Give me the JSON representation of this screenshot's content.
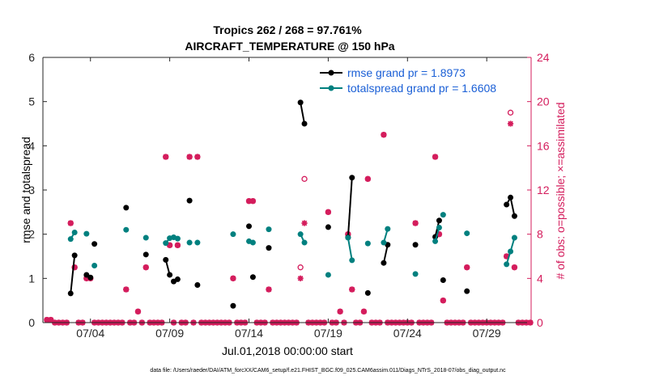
{
  "chart_data": {
    "type": "line",
    "title": "Tropics 262 / 268 = 97.761%",
    "subtitle": "AIRCRAFT_TEMPERATURE @ 150 hPa",
    "xlabel": "Jul.01,2018 00:00:00 start",
    "ylabel": "rmse and totalspread",
    "ylabel_right": "# of obs: o=possible; ×=assimilated",
    "footer": "data file: /Users/raeder/DAI/ATM_forcXX/CAM6_setup/f.e21.FHIST_BGC.f09_025.CAM6assim.011/Diags_NTrS_2018-07/obs_diag_output.nc",
    "xlim": [
      0.5,
      31.3
    ],
    "ylim": [
      0,
      6
    ],
    "ylim_right": [
      0,
      24
    ],
    "x_ticks": [
      3.5,
      8.5,
      13.5,
      18.5,
      23.5,
      28.5
    ],
    "x_tick_labels": [
      "07/04",
      "07/09",
      "07/14",
      "07/19",
      "07/24",
      "07/29"
    ],
    "y_ticks": [
      0,
      1,
      2,
      3,
      4,
      5,
      6
    ],
    "y_ticks_right": [
      0,
      4,
      8,
      12,
      16,
      20,
      24
    ],
    "legend_position": "top-right",
    "colors": {
      "rmse": "#000000",
      "spread": "#00807f",
      "obs": "#d41c5c"
    },
    "series": [
      {
        "name": "rmse grand pr = 1.8973",
        "key": "rmse",
        "segments": [
          [
            [
              2.25,
              0.66
            ],
            [
              2.5,
              1.52
            ]
          ],
          [
            [
              3.25,
              1.08
            ],
            [
              3.5,
              1.02
            ]
          ],
          [
            [
              3.75,
              1.78
            ]
          ],
          [
            [
              5.75,
              2.6
            ]
          ],
          [
            [
              7.0,
              1.54
            ]
          ],
          [
            [
              8.25,
              1.42
            ],
            [
              8.5,
              1.08
            ]
          ],
          [
            [
              8.75,
              0.93
            ],
            [
              9.0,
              0.98
            ]
          ],
          [
            [
              9.75,
              2.76
            ]
          ],
          [
            [
              10.25,
              0.85
            ]
          ],
          [
            [
              12.5,
              0.38
            ]
          ],
          [
            [
              13.5,
              2.18
            ]
          ],
          [
            [
              13.75,
              1.03
            ]
          ],
          [
            [
              14.75,
              1.69
            ]
          ],
          [
            [
              16.75,
              4.98
            ],
            [
              17.0,
              4.5
            ]
          ],
          [
            [
              18.5,
              2.16
            ]
          ],
          [
            [
              19.75,
              1.93
            ],
            [
              20.0,
              3.28
            ]
          ],
          [
            [
              21.0,
              0.67
            ]
          ],
          [
            [
              22.0,
              1.35
            ],
            [
              22.25,
              1.76
            ]
          ],
          [
            [
              24.0,
              1.76
            ]
          ],
          [
            [
              25.25,
              1.94
            ],
            [
              25.5,
              2.31
            ]
          ],
          [
            [
              25.75,
              0.96
            ]
          ],
          [
            [
              27.25,
              0.71
            ]
          ],
          [
            [
              29.75,
              2.67
            ],
            [
              30.0,
              2.83
            ],
            [
              30.25,
              2.41
            ]
          ]
        ]
      },
      {
        "name": "totalspread grand pr = 1.6608",
        "key": "spread",
        "segments": [
          [
            [
              2.25,
              1.89
            ],
            [
              2.5,
              2.04
            ]
          ],
          [
            [
              3.25,
              2.01
            ]
          ],
          [
            [
              3.75,
              1.29
            ]
          ],
          [
            [
              5.75,
              2.1
            ]
          ],
          [
            [
              7.0,
              1.92
            ]
          ],
          [
            [
              8.25,
              1.8
            ],
            [
              8.5,
              1.91
            ]
          ],
          [
            [
              8.75,
              1.93
            ],
            [
              9.0,
              1.9
            ]
          ],
          [
            [
              9.75,
              1.81
            ]
          ],
          [
            [
              10.25,
              1.81
            ]
          ],
          [
            [
              12.5,
              2.0
            ]
          ],
          [
            [
              13.5,
              1.84
            ]
          ],
          [
            [
              13.75,
              1.81
            ]
          ],
          [
            [
              14.75,
              2.11
            ]
          ],
          [
            [
              16.75,
              2.0
            ],
            [
              17.0,
              1.81
            ]
          ],
          [
            [
              18.5,
              1.08
            ]
          ],
          [
            [
              19.75,
              1.92
            ],
            [
              20.0,
              1.41
            ]
          ],
          [
            [
              21.0,
              1.79
            ]
          ],
          [
            [
              22.0,
              1.81
            ],
            [
              22.25,
              2.12
            ]
          ],
          [
            [
              24.0,
              1.1
            ]
          ],
          [
            [
              25.25,
              1.84
            ],
            [
              25.5,
              2.15
            ]
          ],
          [
            [
              25.75,
              2.44
            ]
          ],
          [
            [
              27.25,
              2.02
            ]
          ],
          [
            [
              29.75,
              1.32
            ],
            [
              30.0,
              1.61
            ],
            [
              30.25,
              1.92
            ]
          ]
        ]
      }
    ],
    "obs_possible": [
      [
        0.75,
        0.25
      ],
      [
        1.0,
        0.25
      ],
      [
        1.25,
        0
      ],
      [
        1.5,
        0
      ],
      [
        1.75,
        0
      ],
      [
        2.0,
        0
      ],
      [
        2.25,
        9
      ],
      [
        2.5,
        5
      ],
      [
        2.75,
        0
      ],
      [
        3.0,
        0
      ],
      [
        3.25,
        4
      ],
      [
        3.5,
        4
      ],
      [
        3.75,
        0
      ],
      [
        4.0,
        0
      ],
      [
        4.25,
        0
      ],
      [
        4.5,
        0
      ],
      [
        4.75,
        0
      ],
      [
        5.0,
        0
      ],
      [
        5.25,
        0
      ],
      [
        5.5,
        0
      ],
      [
        5.75,
        3
      ],
      [
        6.0,
        0
      ],
      [
        6.25,
        0
      ],
      [
        6.5,
        1
      ],
      [
        6.75,
        0
      ],
      [
        7.0,
        5
      ],
      [
        7.25,
        0
      ],
      [
        7.5,
        0
      ],
      [
        7.75,
        0
      ],
      [
        8.0,
        0
      ],
      [
        8.25,
        15
      ],
      [
        8.5,
        7
      ],
      [
        8.75,
        0
      ],
      [
        9.0,
        7
      ],
      [
        9.25,
        0
      ],
      [
        9.5,
        0
      ],
      [
        9.75,
        15
      ],
      [
        10.0,
        0
      ],
      [
        10.25,
        15
      ],
      [
        10.5,
        0
      ],
      [
        10.75,
        0
      ],
      [
        11.0,
        0
      ],
      [
        11.25,
        0
      ],
      [
        11.5,
        0
      ],
      [
        11.75,
        0
      ],
      [
        12.0,
        0
      ],
      [
        12.25,
        0
      ],
      [
        12.5,
        4
      ],
      [
        12.75,
        0
      ],
      [
        13.0,
        0
      ],
      [
        13.25,
        0
      ],
      [
        13.5,
        11
      ],
      [
        13.75,
        11
      ],
      [
        14.0,
        0
      ],
      [
        14.25,
        0
      ],
      [
        14.5,
        0
      ],
      [
        14.75,
        3
      ],
      [
        15.0,
        0
      ],
      [
        15.25,
        0
      ],
      [
        15.5,
        0
      ],
      [
        15.75,
        0
      ],
      [
        16.0,
        0
      ],
      [
        16.25,
        0
      ],
      [
        16.5,
        0
      ],
      [
        16.75,
        5
      ],
      [
        17.0,
        13
      ],
      [
        17.25,
        0
      ],
      [
        17.5,
        0
      ],
      [
        17.75,
        0
      ],
      [
        18.0,
        0
      ],
      [
        18.25,
        0
      ],
      [
        18.5,
        10
      ],
      [
        18.75,
        0
      ],
      [
        19.0,
        0
      ],
      [
        19.25,
        1
      ],
      [
        19.5,
        0
      ],
      [
        19.75,
        8
      ],
      [
        20.0,
        3
      ],
      [
        20.25,
        0
      ],
      [
        20.5,
        0
      ],
      [
        20.75,
        1
      ],
      [
        21.0,
        13
      ],
      [
        21.25,
        0
      ],
      [
        21.5,
        0
      ],
      [
        21.75,
        0
      ],
      [
        22.0,
        17
      ],
      [
        22.25,
        0
      ],
      [
        22.5,
        0
      ],
      [
        22.75,
        0
      ],
      [
        23.0,
        0
      ],
      [
        23.25,
        0
      ],
      [
        23.5,
        0
      ],
      [
        23.75,
        0
      ],
      [
        24.0,
        9
      ],
      [
        24.25,
        0
      ],
      [
        24.5,
        0
      ],
      [
        24.75,
        0
      ],
      [
        25.0,
        0
      ],
      [
        25.25,
        15
      ],
      [
        25.5,
        8
      ],
      [
        25.75,
        2
      ],
      [
        26.0,
        0
      ],
      [
        26.25,
        0
      ],
      [
        26.5,
        0
      ],
      [
        26.75,
        0
      ],
      [
        27.0,
        0
      ],
      [
        27.25,
        5
      ],
      [
        27.5,
        0
      ],
      [
        27.75,
        0
      ],
      [
        28.0,
        0
      ],
      [
        28.25,
        0
      ],
      [
        28.5,
        0
      ],
      [
        28.75,
        0
      ],
      [
        29.0,
        0
      ],
      [
        29.25,
        0
      ],
      [
        29.5,
        0
      ],
      [
        29.75,
        6
      ],
      [
        30.0,
        19
      ],
      [
        30.25,
        5
      ],
      [
        30.5,
        0
      ],
      [
        30.75,
        0
      ],
      [
        31.0,
        0
      ],
      [
        31.25,
        0
      ]
    ],
    "obs_assimilated": [
      [
        0.75,
        0.25
      ],
      [
        1.0,
        0.25
      ],
      [
        1.25,
        0
      ],
      [
        1.5,
        0
      ],
      [
        1.75,
        0
      ],
      [
        2.0,
        0
      ],
      [
        2.25,
        9
      ],
      [
        2.5,
        5
      ],
      [
        2.75,
        0
      ],
      [
        3.0,
        0
      ],
      [
        3.25,
        4
      ],
      [
        3.5,
        4
      ],
      [
        3.75,
        0
      ],
      [
        4.0,
        0
      ],
      [
        4.25,
        0
      ],
      [
        4.5,
        0
      ],
      [
        4.75,
        0
      ],
      [
        5.0,
        0
      ],
      [
        5.25,
        0
      ],
      [
        5.5,
        0
      ],
      [
        5.75,
        3
      ],
      [
        6.0,
        0
      ],
      [
        6.25,
        0
      ],
      [
        6.5,
        1
      ],
      [
        6.75,
        0
      ],
      [
        7.0,
        5
      ],
      [
        7.25,
        0
      ],
      [
        7.5,
        0
      ],
      [
        7.75,
        0
      ],
      [
        8.0,
        0
      ],
      [
        8.25,
        15
      ],
      [
        8.5,
        7
      ],
      [
        8.75,
        0
      ],
      [
        9.0,
        7
      ],
      [
        9.25,
        0
      ],
      [
        9.5,
        0
      ],
      [
        9.75,
        15
      ],
      [
        10.0,
        0
      ],
      [
        10.25,
        15
      ],
      [
        10.5,
        0
      ],
      [
        10.75,
        0
      ],
      [
        11.0,
        0
      ],
      [
        11.25,
        0
      ],
      [
        11.5,
        0
      ],
      [
        11.75,
        0
      ],
      [
        12.0,
        0
      ],
      [
        12.25,
        0
      ],
      [
        12.5,
        4
      ],
      [
        12.75,
        0
      ],
      [
        13.0,
        0
      ],
      [
        13.25,
        0
      ],
      [
        13.5,
        11
      ],
      [
        13.75,
        11
      ],
      [
        14.0,
        0
      ],
      [
        14.25,
        0
      ],
      [
        14.5,
        0
      ],
      [
        14.75,
        3
      ],
      [
        15.0,
        0
      ],
      [
        15.25,
        0
      ],
      [
        15.5,
        0
      ],
      [
        15.75,
        0
      ],
      [
        16.0,
        0
      ],
      [
        16.25,
        0
      ],
      [
        16.5,
        0
      ],
      [
        16.75,
        4
      ],
      [
        17.0,
        9
      ],
      [
        17.25,
        0
      ],
      [
        17.5,
        0
      ],
      [
        17.75,
        0
      ],
      [
        18.0,
        0
      ],
      [
        18.25,
        0
      ],
      [
        18.5,
        10
      ],
      [
        18.75,
        0
      ],
      [
        19.0,
        0
      ],
      [
        19.25,
        1
      ],
      [
        19.5,
        0
      ],
      [
        19.75,
        8
      ],
      [
        20.0,
        3
      ],
      [
        20.25,
        0
      ],
      [
        20.5,
        0
      ],
      [
        20.75,
        1
      ],
      [
        21.0,
        13
      ],
      [
        21.25,
        0
      ],
      [
        21.5,
        0
      ],
      [
        21.75,
        0
      ],
      [
        22.0,
        17
      ],
      [
        22.25,
        0
      ],
      [
        22.5,
        0
      ],
      [
        22.75,
        0
      ],
      [
        23.0,
        0
      ],
      [
        23.25,
        0
      ],
      [
        23.5,
        0
      ],
      [
        23.75,
        0
      ],
      [
        24.0,
        9
      ],
      [
        24.25,
        0
      ],
      [
        24.5,
        0
      ],
      [
        24.75,
        0
      ],
      [
        25.0,
        0
      ],
      [
        25.25,
        15
      ],
      [
        25.5,
        8
      ],
      [
        25.75,
        2
      ],
      [
        26.0,
        0
      ],
      [
        26.25,
        0
      ],
      [
        26.5,
        0
      ],
      [
        26.75,
        0
      ],
      [
        27.0,
        0
      ],
      [
        27.25,
        5
      ],
      [
        27.5,
        0
      ],
      [
        27.75,
        0
      ],
      [
        28.0,
        0
      ],
      [
        28.25,
        0
      ],
      [
        28.5,
        0
      ],
      [
        28.75,
        0
      ],
      [
        29.0,
        0
      ],
      [
        29.25,
        0
      ],
      [
        29.5,
        0
      ],
      [
        29.75,
        6
      ],
      [
        30.0,
        18
      ],
      [
        30.25,
        5
      ],
      [
        30.5,
        0
      ],
      [
        30.75,
        0
      ],
      [
        31.0,
        0
      ],
      [
        31.25,
        0
      ]
    ]
  }
}
